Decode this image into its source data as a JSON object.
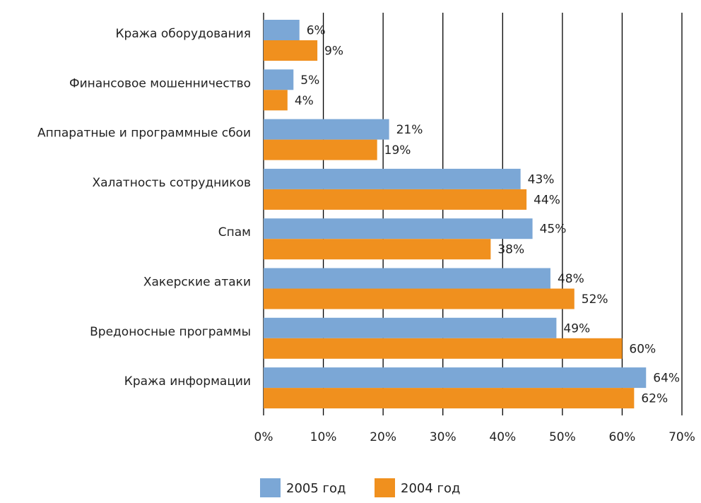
{
  "chart_data": {
    "type": "bar",
    "orientation": "horizontal",
    "categories": [
      "Кража оборудования",
      "Финансовое мошенничество",
      "Аппаратные и программные сбои",
      "Халатность сотрудников",
      "Спам",
      "Хакерские атаки",
      "Вредоносные программы",
      "Кража информации"
    ],
    "series": [
      {
        "name": "2005 год",
        "color": "#7ba7d6",
        "values": [
          6,
          5,
          21,
          43,
          45,
          48,
          49,
          64
        ]
      },
      {
        "name": "2004 год",
        "color": "#f0901e",
        "values": [
          9,
          4,
          19,
          44,
          38,
          52,
          60,
          62
        ]
      }
    ],
    "value_suffix": "%",
    "xlim": [
      0,
      70
    ],
    "xticks": [
      "0%",
      "10%",
      "20%",
      "30%",
      "40%",
      "50%",
      "60%",
      "70%"
    ],
    "grid": true,
    "legend": "bottom",
    "title": "",
    "xlabel": "",
    "ylabel": ""
  }
}
